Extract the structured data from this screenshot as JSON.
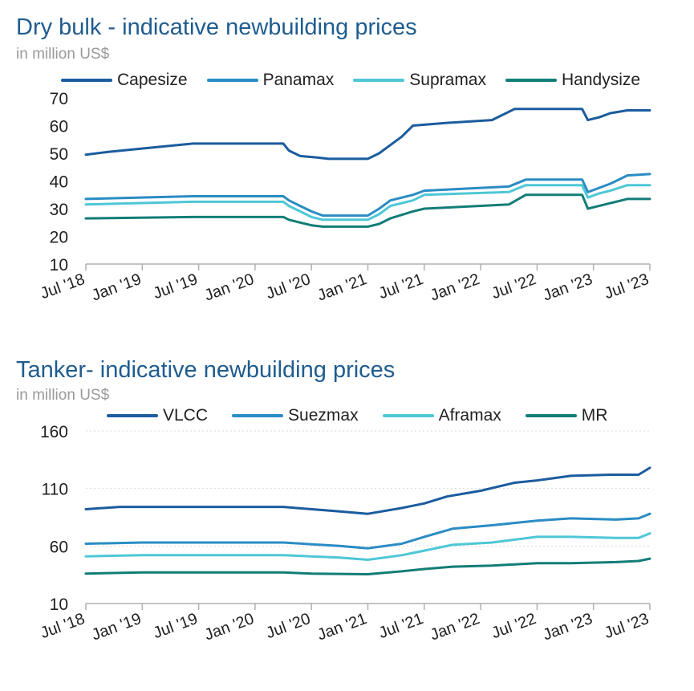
{
  "chart_data": [
    {
      "type": "line",
      "title": "Dry bulk - indicative newbuilding prices",
      "subtitle": "in million US$",
      "x_labels": [
        "Jul '18",
        "Jan '19",
        "Jul '19",
        "Jan '20",
        "Jul '20",
        "Jan '21",
        "Jul '21",
        "Jan '22",
        "Jul '22",
        "Jan '23",
        "Jul '23"
      ],
      "y_ticks": [
        10,
        20,
        30,
        40,
        50,
        60,
        70
      ],
      "ylim": [
        10,
        70
      ],
      "grid": false,
      "legend_position": "top",
      "series": [
        {
          "name": "Capesize",
          "color": "#1b5c9e",
          "points": [
            [
              0,
              49.5
            ],
            [
              0.4,
              50.5
            ],
            [
              0.9,
              51.5
            ],
            [
              1.9,
              53.5
            ],
            [
              3.5,
              53.5
            ],
            [
              3.6,
              51
            ],
            [
              3.8,
              49
            ],
            [
              4.1,
              48.5
            ],
            [
              4.3,
              48
            ],
            [
              5,
              48
            ],
            [
              5.2,
              50
            ],
            [
              5.4,
              53
            ],
            [
              5.6,
              56
            ],
            [
              5.8,
              60
            ],
            [
              6.4,
              61
            ],
            [
              7.2,
              62
            ],
            [
              7.6,
              66
            ],
            [
              8.8,
              66
            ],
            [
              8.9,
              62
            ],
            [
              9.1,
              63
            ],
            [
              9.3,
              64.5
            ],
            [
              9.6,
              65.5
            ],
            [
              10,
              65.5
            ]
          ]
        },
        {
          "name": "Panamax",
          "color": "#2a8cc4",
          "points": [
            [
              0,
              33.5
            ],
            [
              1.9,
              34.5
            ],
            [
              3.5,
              34.5
            ],
            [
              3.6,
              33
            ],
            [
              3.8,
              31
            ],
            [
              4,
              29
            ],
            [
              4.2,
              27.5
            ],
            [
              5,
              27.5
            ],
            [
              5.2,
              30
            ],
            [
              5.4,
              33
            ],
            [
              5.8,
              35
            ],
            [
              6,
              36.5
            ],
            [
              7.5,
              38
            ],
            [
              7.8,
              40.5
            ],
            [
              8.8,
              40.5
            ],
            [
              8.9,
              36
            ],
            [
              9.1,
              37.5
            ],
            [
              9.3,
              39
            ],
            [
              9.6,
              42
            ],
            [
              10,
              42.5
            ]
          ]
        },
        {
          "name": "Supramax",
          "color": "#4ec7d6",
          "points": [
            [
              0,
              31.5
            ],
            [
              1.9,
              32.5
            ],
            [
              3.5,
              32.5
            ],
            [
              3.6,
              31
            ],
            [
              3.8,
              29
            ],
            [
              4,
              27
            ],
            [
              4.2,
              26
            ],
            [
              5,
              26
            ],
            [
              5.2,
              28
            ],
            [
              5.4,
              31
            ],
            [
              5.8,
              33
            ],
            [
              6,
              35
            ],
            [
              7.5,
              36
            ],
            [
              7.8,
              38.5
            ],
            [
              8.8,
              38.5
            ],
            [
              8.9,
              34
            ],
            [
              9.1,
              35.5
            ],
            [
              9.3,
              36.5
            ],
            [
              9.6,
              38.5
            ],
            [
              10,
              38.5
            ]
          ]
        },
        {
          "name": "Handysize",
          "color": "#127d78",
          "points": [
            [
              0,
              26.5
            ],
            [
              1.9,
              27
            ],
            [
              3.5,
              27
            ],
            [
              3.6,
              26
            ],
            [
              3.8,
              25
            ],
            [
              4,
              24
            ],
            [
              4.2,
              23.5
            ],
            [
              5,
              23.5
            ],
            [
              5.2,
              24.5
            ],
            [
              5.4,
              26.5
            ],
            [
              5.8,
              29
            ],
            [
              6,
              30
            ],
            [
              7.5,
              31.5
            ],
            [
              7.8,
              35
            ],
            [
              8.8,
              35
            ],
            [
              8.9,
              30
            ],
            [
              9.1,
              31
            ],
            [
              9.3,
              32
            ],
            [
              9.6,
              33.5
            ],
            [
              10,
              33.5
            ]
          ]
        }
      ]
    },
    {
      "type": "line",
      "title": "Tanker- indicative newbuilding prices",
      "subtitle": "in million US$",
      "x_labels": [
        "Jul '18",
        "Jan '19",
        "Jul '19",
        "Jan '20",
        "Jul '20",
        "Jan '21",
        "Jul '21",
        "Jan '22",
        "Jul '22",
        "Jan '23",
        "Jul '23"
      ],
      "y_ticks": [
        10,
        60,
        110,
        160
      ],
      "ylim": [
        10,
        160
      ],
      "grid": true,
      "legend_position": "top",
      "series": [
        {
          "name": "VLCC",
          "color": "#1b5c9e",
          "points": [
            [
              0,
              92
            ],
            [
              0.6,
              94
            ],
            [
              3.5,
              94
            ],
            [
              4.5,
              90
            ],
            [
              5,
              88
            ],
            [
              5.6,
              93
            ],
            [
              6,
              97
            ],
            [
              6.4,
              103
            ],
            [
              7,
              108
            ],
            [
              7.6,
              115
            ],
            [
              8,
              117
            ],
            [
              8.6,
              121
            ],
            [
              9.3,
              122
            ],
            [
              9.8,
              122
            ],
            [
              10,
              128
            ]
          ]
        },
        {
          "name": "Suezmax",
          "color": "#2a8cc4",
          "points": [
            [
              0,
              62
            ],
            [
              1,
              63
            ],
            [
              3.5,
              63
            ],
            [
              4.5,
              60
            ],
            [
              5,
              58
            ],
            [
              5.6,
              62
            ],
            [
              6,
              68
            ],
            [
              6.5,
              75
            ],
            [
              7.2,
              78
            ],
            [
              8,
              82
            ],
            [
              8.6,
              84
            ],
            [
              9.4,
              83
            ],
            [
              9.8,
              84
            ],
            [
              10,
              88
            ]
          ]
        },
        {
          "name": "Aframax",
          "color": "#4ec7d6",
          "points": [
            [
              0,
              51
            ],
            [
              1,
              52
            ],
            [
              3.5,
              52
            ],
            [
              4.5,
              50
            ],
            [
              5,
              48
            ],
            [
              5.6,
              52
            ],
            [
              6,
              56
            ],
            [
              6.5,
              61
            ],
            [
              7.2,
              63
            ],
            [
              8,
              68
            ],
            [
              8.6,
              68
            ],
            [
              9.4,
              67
            ],
            [
              9.8,
              67
            ],
            [
              10,
              71
            ]
          ]
        },
        {
          "name": "MR",
          "color": "#127d78",
          "points": [
            [
              0,
              36
            ],
            [
              1,
              37
            ],
            [
              3.5,
              37
            ],
            [
              4,
              36
            ],
            [
              5,
              35.5
            ],
            [
              5.6,
              38
            ],
            [
              6,
              40
            ],
            [
              6.5,
              42
            ],
            [
              7.2,
              43
            ],
            [
              8,
              45
            ],
            [
              8.6,
              45
            ],
            [
              9.4,
              46
            ],
            [
              9.8,
              47
            ],
            [
              10,
              49
            ]
          ]
        }
      ]
    }
  ]
}
